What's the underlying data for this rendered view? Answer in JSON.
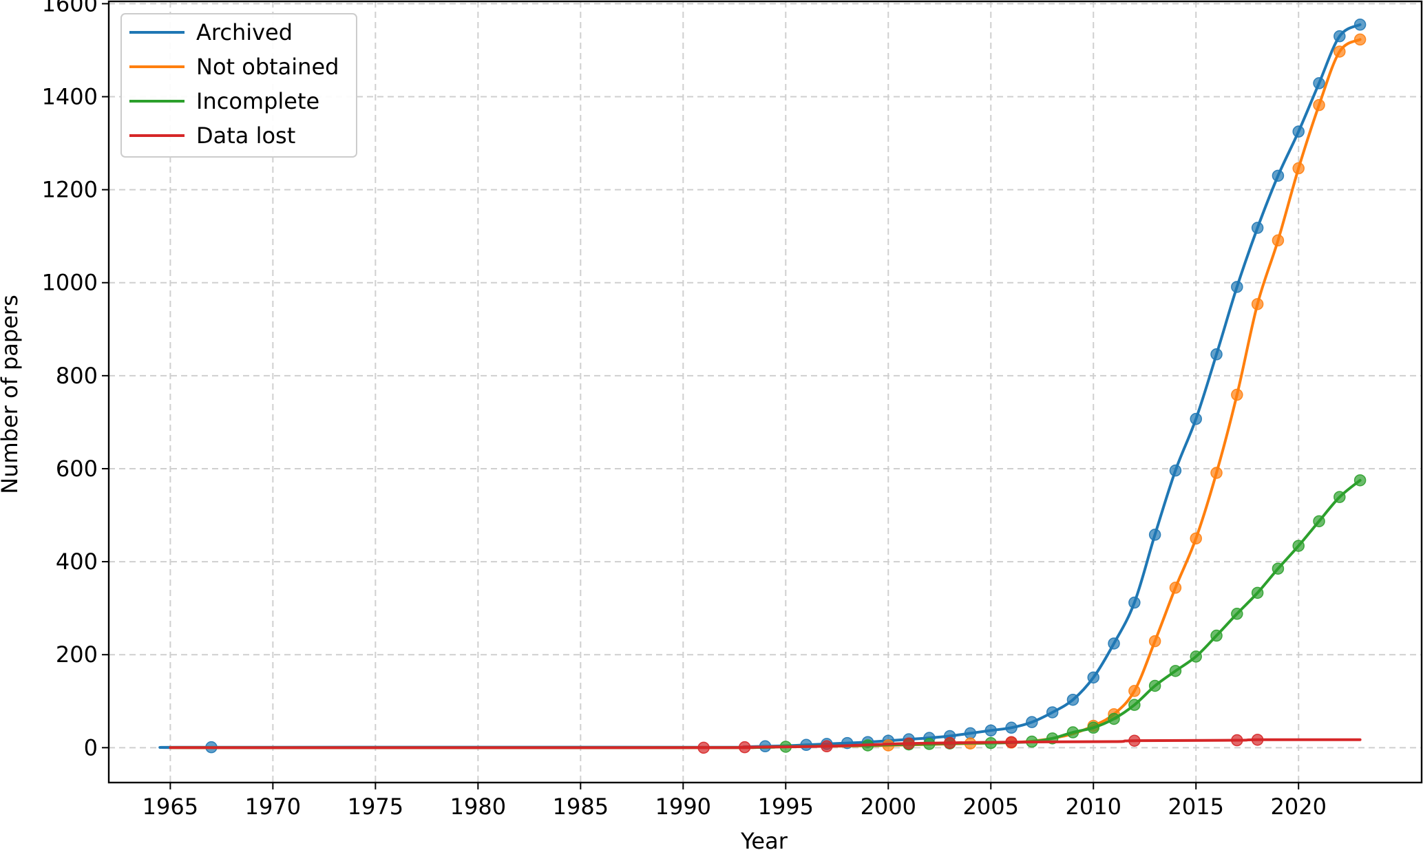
{
  "chart_data": {
    "type": "line",
    "xlabel": "Year",
    "ylabel": "Number of papers",
    "xlim": [
      1962,
      2026
    ],
    "ylim": [
      -75,
      1605
    ],
    "xticks": [
      1965,
      1970,
      1975,
      1980,
      1985,
      1990,
      1995,
      2000,
      2005,
      2010,
      2015,
      2020
    ],
    "yticks": [
      0,
      200,
      400,
      600,
      800,
      1000,
      1200,
      1400,
      1600
    ],
    "grid": true,
    "legend_position": "top-left",
    "series": [
      {
        "name": "Archived",
        "color": "#1f77b4",
        "x": [
          1965,
          1967,
          1991,
          1993,
          1994,
          1995,
          1996,
          1997,
          1998,
          1999,
          2000,
          2001,
          2002,
          2003,
          2004,
          2005,
          2006,
          2007,
          2008,
          2009,
          2010,
          2011,
          2012,
          2013,
          2014,
          2015,
          2016,
          2017,
          2018,
          2019,
          2020,
          2021,
          2022,
          2023
        ],
        "y": [
          0,
          1,
          1,
          2,
          3,
          4,
          6,
          8,
          10,
          12,
          15,
          18,
          21,
          25,
          31,
          37,
          43,
          55,
          76,
          103,
          151,
          224,
          312,
          458,
          596,
          707,
          846,
          991,
          1118,
          1230,
          1325,
          1429,
          1530,
          1555
        ],
        "markers": [
          1967,
          1994,
          1996,
          1997,
          1998,
          1999,
          2000,
          2001,
          2002,
          2003,
          2004,
          2005,
          2006,
          2007,
          2008,
          2009,
          2010,
          2011,
          2012,
          2013,
          2014,
          2015,
          2016,
          2017,
          2018,
          2019,
          2020,
          2021,
          2022,
          2023
        ]
      },
      {
        "name": "Not obtained",
        "color": "#ff7f0e",
        "x": [
          1965,
          1991,
          1993,
          1995,
          1997,
          1999,
          2000,
          2001,
          2002,
          2003,
          2004,
          2005,
          2006,
          2007,
          2008,
          2009,
          2010,
          2011,
          2012,
          2013,
          2014,
          2015,
          2016,
          2017,
          2018,
          2019,
          2020,
          2021,
          2022,
          2023
        ],
        "y": [
          0,
          0,
          1,
          2,
          3,
          4,
          5,
          6,
          7,
          8,
          9,
          10,
          11,
          14,
          20,
          30,
          47,
          72,
          122,
          229,
          344,
          450,
          591,
          759,
          954,
          1091,
          1246,
          1382,
          1497,
          1523
        ],
        "markers": [
          2000,
          2004,
          2006,
          2010,
          2011,
          2012,
          2013,
          2014,
          2015,
          2016,
          2017,
          2018,
          2019,
          2020,
          2021,
          2022,
          2023
        ]
      },
      {
        "name": "Incomplete",
        "color": "#2ca02c",
        "x": [
          1965,
          1991,
          1995,
          1999,
          2001,
          2002,
          2003,
          2004,
          2005,
          2006,
          2007,
          2008,
          2009,
          2010,
          2011,
          2012,
          2013,
          2014,
          2015,
          2016,
          2017,
          2018,
          2019,
          2020,
          2021,
          2022,
          2023
        ],
        "y": [
          0,
          0,
          2,
          5,
          7,
          8,
          9,
          10,
          10,
          11,
          13,
          20,
          33,
          43,
          62,
          92,
          133,
          165,
          196,
          241,
          288,
          333,
          385,
          434,
          487,
          539,
          575
        ],
        "markers": [
          1995,
          1999,
          2001,
          2002,
          2003,
          2005,
          2007,
          2008,
          2009,
          2010,
          2011,
          2012,
          2013,
          2014,
          2015,
          2016,
          2017,
          2018,
          2019,
          2020,
          2021,
          2022,
          2023
        ]
      },
      {
        "name": "Data lost",
        "color": "#d62728",
        "x": [
          1965,
          1991,
          1993,
          1997,
          2001,
          2006,
          2011,
          2012,
          2017,
          2018,
          2023
        ],
        "y": [
          0,
          0,
          1,
          3,
          9,
          12,
          13,
          15,
          16,
          17,
          17
        ],
        "markers": [
          1991,
          1993,
          1997,
          2001,
          2003,
          2006,
          2012,
          2017,
          2018
        ]
      }
    ]
  }
}
